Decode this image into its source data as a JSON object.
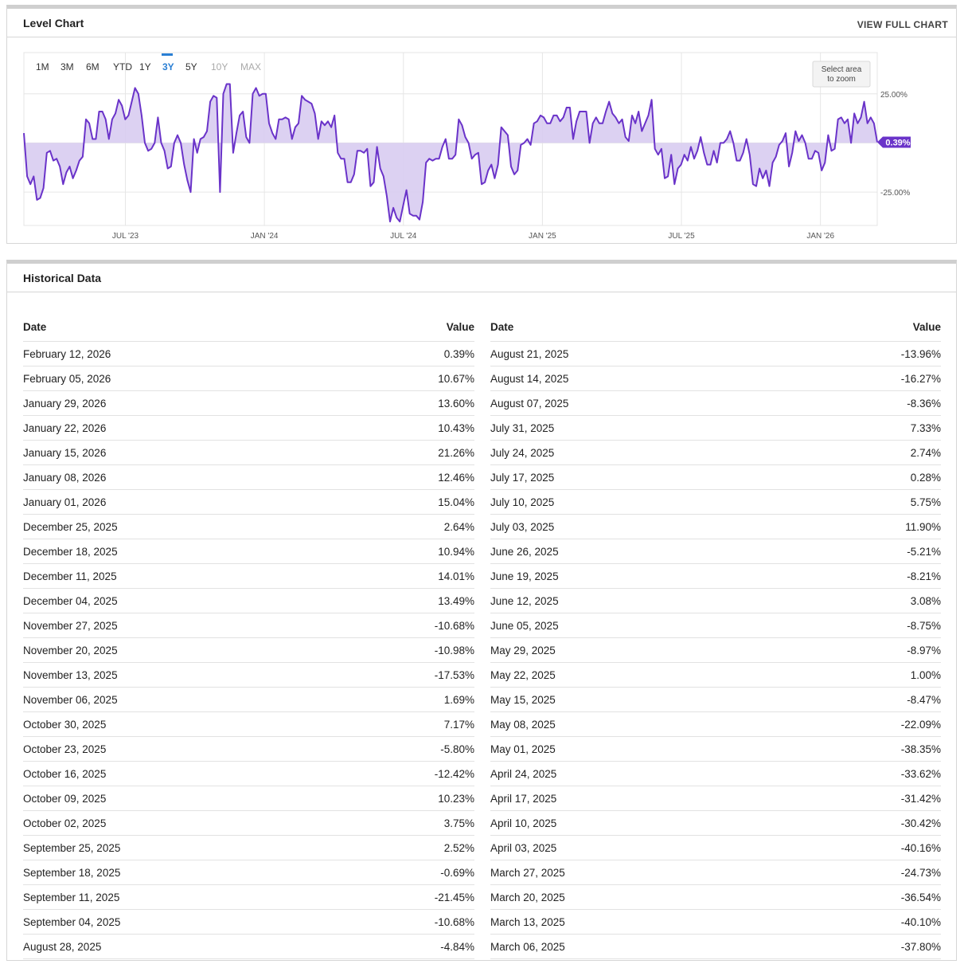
{
  "level_chart": {
    "title": "Level Chart",
    "view_full_chart": "VIEW FULL CHART",
    "ranges": [
      "1M",
      "3M",
      "6M",
      "YTD",
      "1Y",
      "3Y",
      "5Y",
      "10Y",
      "MAX"
    ],
    "active_range": "3Y",
    "disabled_ranges": [
      "10Y",
      "MAX"
    ],
    "zoom_hint": [
      "Select area",
      "to zoom"
    ],
    "current_value_badge": "0.39%",
    "colors": {
      "line": "#6a33c9",
      "fill": "#d8ccf1",
      "badge": "#6a33c9",
      "active_range": "#2a7fd4"
    }
  },
  "chart_data": {
    "type": "area",
    "x_tick_labels": [
      "JUL '23",
      "JAN '24",
      "JUL '24",
      "JAN '25",
      "JUL '25",
      "JAN '26"
    ],
    "y_tick_labels": [
      "25.00%",
      "0.00%",
      "-25.00%"
    ],
    "ylim": [
      -42,
      46
    ],
    "x_ticks_time": [
      1.98,
      27.98,
      53.98,
      79.98,
      105.98,
      131.98
    ],
    "x_time_range": [
      -17,
      142.6
    ],
    "series": [
      {
        "values": [
          5,
          -17,
          -21,
          -17,
          -29,
          -28,
          -23,
          -5,
          -4,
          -9,
          -8,
          -12,
          -21,
          -15,
          -12,
          -18,
          -14,
          -9,
          -7,
          12,
          10,
          2,
          2,
          16,
          16,
          12,
          2,
          12,
          15,
          22,
          19,
          12,
          14,
          21,
          28,
          25,
          14,
          0,
          -4,
          -3,
          0,
          13,
          0,
          -4,
          -13,
          -12,
          0,
          4,
          0,
          -11,
          -19,
          -25,
          2,
          -5,
          2,
          3,
          6,
          21,
          24,
          23,
          -25,
          25,
          30,
          30,
          -5,
          5,
          14,
          16,
          3,
          0,
          25,
          28,
          24,
          25,
          25,
          10,
          5,
          2,
          12,
          12,
          13,
          12,
          2,
          8,
          10,
          24,
          22,
          21,
          20,
          15,
          2,
          11,
          9,
          11,
          8,
          14,
          -5,
          -8,
          -8,
          -20,
          -20,
          -16,
          -4,
          -4,
          -5,
          -3,
          -22,
          -20,
          -2,
          -13,
          -17,
          -27,
          -40,
          -33,
          -38,
          -40,
          -32,
          -24,
          -36,
          -37,
          -37,
          -39,
          -30,
          -10,
          -8,
          -9,
          -8,
          -8,
          -2,
          2,
          -8,
          -8,
          -6,
          12,
          9,
          3,
          0,
          -8,
          -6,
          -5,
          -21,
          -20,
          -14,
          -11,
          -18,
          -11,
          8,
          6,
          4,
          -12,
          -16,
          -14,
          -1,
          0,
          2,
          -1,
          10,
          11,
          14,
          13,
          10,
          10,
          14,
          14,
          11,
          13,
          18,
          18,
          2,
          11,
          16,
          16,
          16,
          0,
          10,
          13,
          10,
          10,
          16,
          21,
          15,
          13,
          10,
          12,
          3,
          1,
          14,
          10,
          16,
          6,
          10,
          14,
          22,
          -3,
          -6,
          -3,
          -18,
          -17,
          -6,
          -21,
          -13,
          -11,
          -6,
          -9,
          -2,
          -8,
          -4,
          3,
          -5,
          -11,
          -11,
          -4,
          -10,
          0,
          0,
          2,
          6,
          0,
          -9,
          -9,
          -5,
          2,
          -6,
          -21,
          -22,
          -13,
          -18,
          -14,
          -22,
          -10,
          -7,
          -1,
          1,
          5,
          -12,
          -5,
          6,
          1,
          4,
          0,
          -8,
          -8,
          -4,
          -5,
          -14,
          -10,
          4,
          -4,
          -3,
          12,
          13,
          10,
          12,
          0,
          15,
          10,
          13,
          21,
          10,
          13,
          10,
          0.39
        ]
      }
    ]
  },
  "historical": {
    "title": "Historical Data",
    "headers": {
      "date": "Date",
      "value": "Value"
    },
    "left": [
      [
        "February 12, 2026",
        "0.39%"
      ],
      [
        "February 05, 2026",
        "10.67%"
      ],
      [
        "January 29, 2026",
        "13.60%"
      ],
      [
        "January 22, 2026",
        "10.43%"
      ],
      [
        "January 15, 2026",
        "21.26%"
      ],
      [
        "January 08, 2026",
        "12.46%"
      ],
      [
        "January 01, 2026",
        "15.04%"
      ],
      [
        "December 25, 2025",
        "2.64%"
      ],
      [
        "December 18, 2025",
        "10.94%"
      ],
      [
        "December 11, 2025",
        "14.01%"
      ],
      [
        "December 04, 2025",
        "13.49%"
      ],
      [
        "November 27, 2025",
        "-10.68%"
      ],
      [
        "November 20, 2025",
        "-10.98%"
      ],
      [
        "November 13, 2025",
        "-17.53%"
      ],
      [
        "November 06, 2025",
        "1.69%"
      ],
      [
        "October 30, 2025",
        "7.17%"
      ],
      [
        "October 23, 2025",
        "-5.80%"
      ],
      [
        "October 16, 2025",
        "-12.42%"
      ],
      [
        "October 09, 2025",
        "10.23%"
      ],
      [
        "October 02, 2025",
        "3.75%"
      ],
      [
        "September 25, 2025",
        "2.52%"
      ],
      [
        "September 18, 2025",
        "-0.69%"
      ],
      [
        "September 11, 2025",
        "-21.45%"
      ],
      [
        "September 04, 2025",
        "-10.68%"
      ],
      [
        "August 28, 2025",
        "-4.84%"
      ]
    ],
    "right": [
      [
        "August 21, 2025",
        "-13.96%"
      ],
      [
        "August 14, 2025",
        "-16.27%"
      ],
      [
        "August 07, 2025",
        "-8.36%"
      ],
      [
        "July 31, 2025",
        "7.33%"
      ],
      [
        "July 24, 2025",
        "2.74%"
      ],
      [
        "July 17, 2025",
        "0.28%"
      ],
      [
        "July 10, 2025",
        "5.75%"
      ],
      [
        "July 03, 2025",
        "11.90%"
      ],
      [
        "June 26, 2025",
        "-5.21%"
      ],
      [
        "June 19, 2025",
        "-8.21%"
      ],
      [
        "June 12, 2025",
        "3.08%"
      ],
      [
        "June 05, 2025",
        "-8.75%"
      ],
      [
        "May 29, 2025",
        "-8.97%"
      ],
      [
        "May 22, 2025",
        "1.00%"
      ],
      [
        "May 15, 2025",
        "-8.47%"
      ],
      [
        "May 08, 2025",
        "-22.09%"
      ],
      [
        "May 01, 2025",
        "-38.35%"
      ],
      [
        "April 24, 2025",
        "-33.62%"
      ],
      [
        "April 17, 2025",
        "-31.42%"
      ],
      [
        "April 10, 2025",
        "-30.42%"
      ],
      [
        "April 03, 2025",
        "-40.16%"
      ],
      [
        "March 27, 2025",
        "-24.73%"
      ],
      [
        "March 20, 2025",
        "-36.54%"
      ],
      [
        "March 13, 2025",
        "-40.10%"
      ],
      [
        "March 06, 2025",
        "-37.80%"
      ]
    ]
  }
}
